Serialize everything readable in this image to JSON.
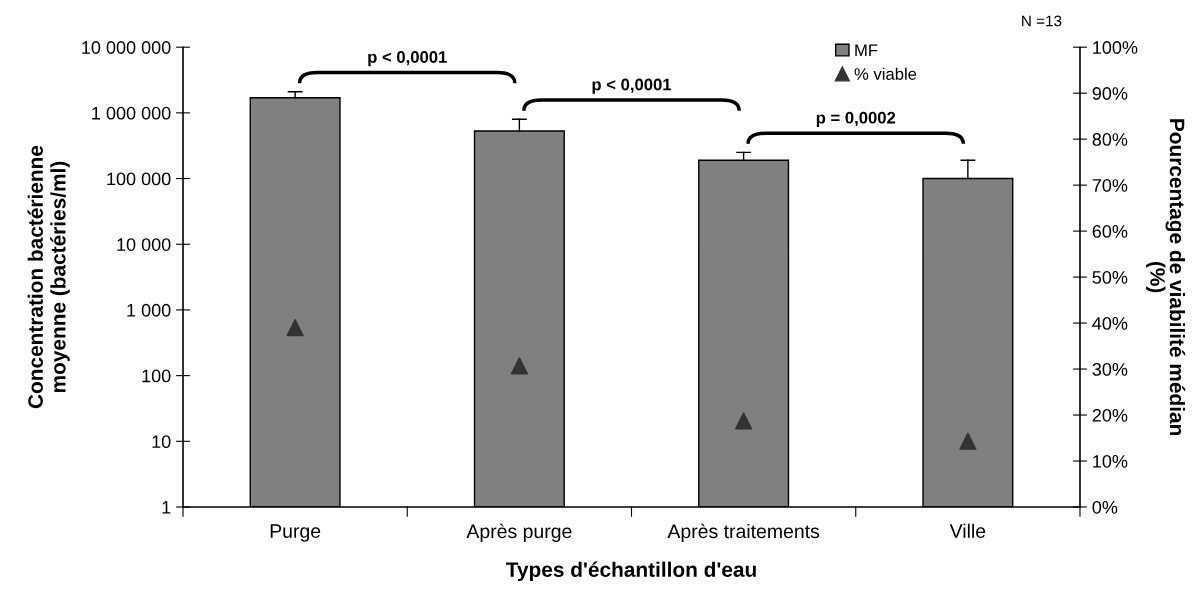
{
  "chart_data": {
    "type": "bar",
    "xlabel": "Types d'échantillon d'eau",
    "ylabel": "Concentration bactérienne\nmoyenne (bactéries/ml)",
    "y2label": "Pourcentage de viabilité médian\n(%)",
    "categories": [
      "Purge",
      "Après purge",
      "Après traitements",
      "Ville"
    ],
    "series": [
      {
        "name": "MF",
        "type": "bar",
        "color": "#808080",
        "values": [
          1700000,
          530000,
          190000,
          100000
        ],
        "errors": [
          [
            1700000,
            2100000
          ],
          [
            530000,
            800000
          ],
          [
            190000,
            250000
          ],
          [
            100000,
            190000
          ]
        ]
      },
      {
        "name": "% viable",
        "type": "scatter",
        "axis": "y2",
        "marker": "triangle",
        "color": "#333333",
        "values": [
          39,
          30.7,
          18.7,
          14.3
        ]
      }
    ],
    "log": "y",
    "ylim": [
      1,
      10000000
    ],
    "yticks": [
      {
        "value": 1,
        "label": "1"
      },
      {
        "value": 10,
        "label": "10"
      },
      {
        "value": 100,
        "label": "100"
      },
      {
        "value": 1000,
        "label": "1 000"
      },
      {
        "value": 10000,
        "label": "10 000"
      },
      {
        "value": 100000,
        "label": "100 000"
      },
      {
        "value": 1000000,
        "label": "1 000 000"
      },
      {
        "value": 10000000,
        "label": "10 000 000"
      }
    ],
    "y2lim": [
      0,
      100
    ],
    "y2ticks": [
      {
        "value": 0,
        "label": "0%"
      },
      {
        "value": 10,
        "label": "10%"
      },
      {
        "value": 20,
        "label": "20%"
      },
      {
        "value": 30,
        "label": "30%"
      },
      {
        "value": 40,
        "label": "40%"
      },
      {
        "value": 50,
        "label": "50%"
      },
      {
        "value": 60,
        "label": "60%"
      },
      {
        "value": 70,
        "label": "70%"
      },
      {
        "value": 80,
        "label": "80%"
      },
      {
        "value": 90,
        "label": "90%"
      },
      {
        "value": 100,
        "label": "100%"
      }
    ],
    "annotations": [
      "p < 0,0001",
      "p < 0,0001",
      "p = 0,0002",
      "N =13"
    ],
    "grid": false,
    "legend": "top right"
  }
}
